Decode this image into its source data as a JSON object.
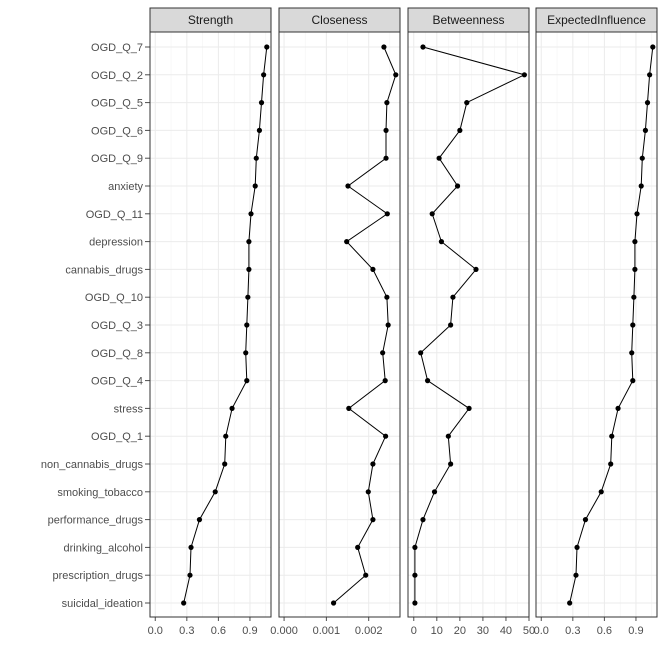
{
  "chart_data": {
    "type": "line",
    "layout": "faceted-centrality-plot",
    "grid": true,
    "legend": "none",
    "colors": {
      "strip_fill": "#d9d9d9",
      "panel_border": "#333333",
      "grid": "#ebebeb",
      "line": "#000000",
      "point": "#000000",
      "axis_text": "#4d4d4d"
    },
    "categories": [
      "OGD_Q_7",
      "OGD_Q_2",
      "OGD_Q_5",
      "OGD_Q_6",
      "OGD_Q_9",
      "anxiety",
      "OGD_Q_11",
      "depression",
      "cannabis_drugs",
      "OGD_Q_10",
      "OGD_Q_3",
      "OGD_Q_8",
      "OGD_Q_4",
      "stress",
      "OGD_Q_1",
      "non_cannabis_drugs",
      "smoking_tobacco",
      "performance_drugs",
      "drinking_alcohol",
      "prescription_drugs",
      "suicidal_ideation"
    ],
    "panels": [
      {
        "name": "Strength",
        "xlim": [
          -0.05,
          1.1
        ],
        "ticks": [
          0.0,
          0.3,
          0.6,
          0.9
        ],
        "tick_labels": [
          "0.0",
          "0.3",
          "0.6",
          "0.9"
        ],
        "values": [
          1.06,
          1.03,
          1.01,
          0.99,
          0.96,
          0.95,
          0.91,
          0.89,
          0.89,
          0.88,
          0.87,
          0.86,
          0.87,
          0.73,
          0.67,
          0.66,
          0.57,
          0.42,
          0.34,
          0.33,
          0.27
        ]
      },
      {
        "name": "Closeness",
        "xlim": [
          -0.00012,
          0.00274
        ],
        "ticks": [
          0.0,
          0.001,
          0.002
        ],
        "tick_labels": [
          "0.000",
          "0.001",
          "0.002"
        ],
        "values": [
          0.00236,
          0.00264,
          0.00243,
          0.00241,
          0.00241,
          0.00151,
          0.00244,
          0.00148,
          0.0021,
          0.00243,
          0.00246,
          0.00233,
          0.00239,
          0.00153,
          0.0024,
          0.0021,
          0.00199,
          0.0021,
          0.00174,
          0.00193,
          0.00117
        ]
      },
      {
        "name": "Betweenness",
        "xlim": [
          -2.5,
          50
        ],
        "ticks": [
          0,
          10,
          20,
          30,
          40,
          50
        ],
        "tick_labels": [
          "0",
          "10",
          "20",
          "30",
          "40",
          "50"
        ],
        "values": [
          4,
          48,
          23,
          20,
          11,
          19,
          8,
          12,
          27,
          17,
          16,
          3,
          6,
          24,
          15,
          16,
          9,
          4,
          0.5,
          0.5,
          0.5
        ]
      },
      {
        "name": "ExpectedInfluence",
        "xlim": [
          -0.05,
          1.1
        ],
        "ticks": [
          0.0,
          0.3,
          0.6,
          0.9
        ],
        "tick_labels": [
          "0.0",
          "0.3",
          "0.6",
          "0.9"
        ],
        "values": [
          1.06,
          1.03,
          1.01,
          0.99,
          0.96,
          0.95,
          0.91,
          0.89,
          0.89,
          0.88,
          0.87,
          0.86,
          0.87,
          0.73,
          0.67,
          0.66,
          0.57,
          0.42,
          0.34,
          0.33,
          0.27
        ]
      }
    ]
  }
}
